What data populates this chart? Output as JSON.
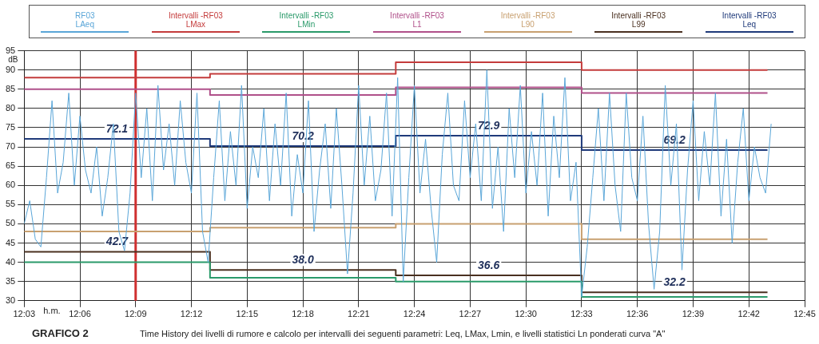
{
  "chart_data": {
    "type": "line",
    "title": "GRAFICO 2",
    "ylabel": "dB",
    "xlabel": "h.m.",
    "legend": "top",
    "grid": true,
    "marker": "none",
    "xlim": [
      12.05,
      12.75
    ],
    "xticks": [
      {
        "value": 12.05,
        "label": "12:03"
      },
      {
        "value": 12.1,
        "label": "12:06"
      },
      {
        "value": 12.15,
        "label": "12:09"
      },
      {
        "value": 12.2,
        "label": "12:12"
      },
      {
        "value": 12.25,
        "label": "12:15"
      },
      {
        "value": 12.3,
        "label": "12:18"
      },
      {
        "value": 12.35,
        "label": "12:21"
      },
      {
        "value": 12.4,
        "label": "12:24"
      },
      {
        "value": 12.45,
        "label": "12:27"
      },
      {
        "value": 12.5,
        "label": "12:30"
      },
      {
        "value": 12.55,
        "label": "12:33"
      },
      {
        "value": 12.6,
        "label": "12:36"
      },
      {
        "value": 12.65,
        "label": "12:39"
      },
      {
        "value": 12.7,
        "label": "12:42"
      },
      {
        "value": 12.75,
        "label": "12:45"
      }
    ],
    "ylim": [
      30,
      95
    ],
    "yticks": [
      30,
      35,
      40,
      45,
      50,
      55,
      60,
      65,
      70,
      75,
      80,
      85,
      90,
      95
    ],
    "series": [
      {
        "name": "RF03\nLAeq",
        "color": "#5aa6d8",
        "x": [
          12.05,
          12.055,
          12.06,
          12.065,
          12.07,
          12.075,
          12.08,
          12.085,
          12.09,
          12.095,
          12.1,
          12.105,
          12.11,
          12.115,
          12.12,
          12.125,
          12.13,
          12.135,
          12.14,
          12.145,
          12.15,
          12.155,
          12.16,
          12.165,
          12.17,
          12.175,
          12.18,
          12.185,
          12.19,
          12.195,
          12.2,
          12.205,
          12.21,
          12.215,
          12.22,
          12.225,
          12.23,
          12.235,
          12.24,
          12.245,
          12.25,
          12.255,
          12.26,
          12.265,
          12.27,
          12.275,
          12.28,
          12.285,
          12.29,
          12.295,
          12.3,
          12.305,
          12.31,
          12.315,
          12.32,
          12.325,
          12.33,
          12.335,
          12.34,
          12.345,
          12.35,
          12.355,
          12.36,
          12.365,
          12.37,
          12.375,
          12.38,
          12.385,
          12.39,
          12.395,
          12.4,
          12.405,
          12.41,
          12.415,
          12.42,
          12.425,
          12.43,
          12.435,
          12.44,
          12.445,
          12.45,
          12.455,
          12.46,
          12.465,
          12.47,
          12.475,
          12.48,
          12.485,
          12.49,
          12.495,
          12.5,
          12.505,
          12.51,
          12.515,
          12.52,
          12.525,
          12.53,
          12.535,
          12.54,
          12.545,
          12.55,
          12.555,
          12.56,
          12.565,
          12.57,
          12.575,
          12.58,
          12.585,
          12.59,
          12.595,
          12.6,
          12.605,
          12.61,
          12.615,
          12.62,
          12.625,
          12.63,
          12.635,
          12.64,
          12.645,
          12.65,
          12.655,
          12.66,
          12.665,
          12.67,
          12.675,
          12.68,
          12.685,
          12.69,
          12.695,
          12.7,
          12.705,
          12.71,
          12.715,
          12.72
        ],
        "values": [
          50,
          56,
          46,
          44,
          62,
          82,
          58,
          66,
          84,
          60,
          78,
          64,
          58,
          70,
          52,
          62,
          76,
          48,
          43,
          58,
          84,
          62,
          80,
          56,
          86,
          64,
          76,
          60,
          82,
          66,
          58,
          84,
          48,
          40,
          62,
          82,
          56,
          74,
          60,
          86,
          54,
          70,
          62,
          80,
          56,
          76,
          60,
          84,
          52,
          68,
          58,
          82,
          48,
          64,
          76,
          54,
          80,
          60,
          37,
          58,
          86,
          60,
          78,
          56,
          64,
          84,
          52,
          88,
          35,
          62,
          86,
          58,
          72,
          54,
          40,
          68,
          84,
          60,
          56,
          82,
          62,
          76,
          56,
          90,
          54,
          70,
          48,
          80,
          62,
          86,
          58,
          74,
          60,
          84,
          52,
          78,
          62,
          88,
          56,
          66,
          31,
          44,
          62,
          80,
          56,
          84,
          60,
          48,
          84,
          62,
          56,
          78,
          50,
          33,
          48,
          86,
          60,
          76,
          38,
          64,
          82,
          56,
          74,
          60,
          84,
          52,
          72,
          45,
          66,
          80,
          56,
          70,
          62,
          58,
          76
        ]
      },
      {
        "name": "Intervalli -RF03\nLMax",
        "type": "step",
        "color": "#c43c3c",
        "x": [
          12.05,
          12.2167,
          12.3833,
          12.55,
          12.7167
        ],
        "values": [
          88,
          89,
          92,
          90,
          90
        ]
      },
      {
        "name": "Intervalli -RF03\nLMin",
        "type": "step",
        "color": "#2a9a6a",
        "x": [
          12.05,
          12.2167,
          12.3833,
          12.55,
          12.7167
        ],
        "values": [
          40,
          36,
          35,
          31,
          31
        ]
      },
      {
        "name": "Intervalli -RF03\nL1",
        "type": "step",
        "color": "#b0508a",
        "x": [
          12.05,
          12.2167,
          12.3833,
          12.55,
          12.7167
        ],
        "values": [
          85,
          83.5,
          85.5,
          84,
          84
        ]
      },
      {
        "name": "Intervalli -RF03\nL90",
        "type": "step",
        "color": "#c8a070",
        "x": [
          12.05,
          12.2167,
          12.3833,
          12.55,
          12.7167
        ],
        "values": [
          48,
          49,
          50,
          46,
          46
        ]
      },
      {
        "name": "Intervalli -RF03\nL99",
        "type": "step",
        "color": "#4a3020",
        "x": [
          12.05,
          12.2167,
          12.3833,
          12.55,
          12.7167
        ],
        "values": [
          42.7,
          38.0,
          36.6,
          32.2,
          32.2
        ]
      },
      {
        "name": "Intervalli -RF03\nLeq",
        "type": "step",
        "color": "#1f3a7a",
        "x": [
          12.05,
          12.2167,
          12.3833,
          12.55,
          12.7167
        ],
        "values": [
          72.1,
          70.2,
          72.9,
          69.2,
          69.2
        ]
      }
    ],
    "ref_lines": [
      {
        "axis": "x",
        "value": 12.15,
        "color": "#d03030"
      }
    ],
    "annotations": [
      {
        "text": "72.1",
        "x": 12.1333,
        "y": 72.1
      },
      {
        "text": "70.2",
        "x": 12.3,
        "y": 70.2
      },
      {
        "text": "72.9",
        "x": 12.4667,
        "y": 72.9
      },
      {
        "text": "69.2",
        "x": 12.6333,
        "y": 69.2
      },
      {
        "text": "42.7",
        "x": 12.1333,
        "y": 42.7
      },
      {
        "text": "38.0",
        "x": 12.3,
        "y": 38.0
      },
      {
        "text": "36.6",
        "x": 12.4667,
        "y": 36.6
      },
      {
        "text": "32.2",
        "x": 12.6333,
        "y": 32.2
      },
      "Time History dei livelli di rumore e calcolo per intervalli dei seguenti parametri: Leq, LMax, Lmin, e livelli statistici Ln ponderati curva \"A\""
    ]
  }
}
